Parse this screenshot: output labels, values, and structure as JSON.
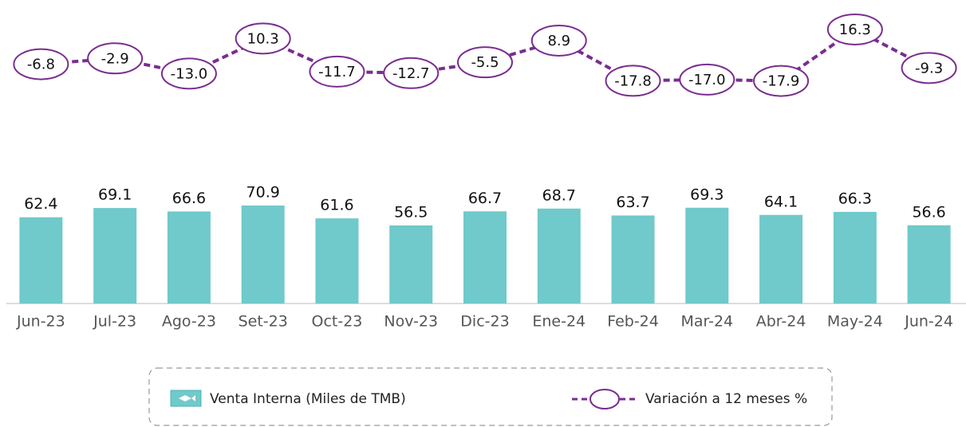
{
  "chart_data": {
    "type": "bar-line",
    "categories": [
      "Jun-23",
      "Jul-23",
      "Ago-23",
      "Set-23",
      "Oct-23",
      "Nov-23",
      "Dic-23",
      "Ene-24",
      "Feb-24",
      "Mar-24",
      "Abr-24",
      "May-24",
      "Jun-24"
    ],
    "series": [
      {
        "name": "Venta Interna (Miles de TMB)",
        "color": "#70c9ca",
        "values": [
          62.4,
          69.1,
          66.6,
          70.9,
          61.6,
          56.5,
          66.7,
          68.7,
          63.7,
          69.3,
          64.1,
          66.3,
          56.6
        ]
      },
      {
        "name": "Variación a 12 meses %",
        "color": "#7a2d8f",
        "axis": "y2",
        "values": [
          -6.8,
          -2.9,
          -13.0,
          10.3,
          -11.7,
          -12.7,
          -5.5,
          8.9,
          -17.8,
          -17.0,
          -17.9,
          16.3,
          -9.3
        ],
        "value_labels": [
          "-6.8",
          "-2.9",
          "-13.0",
          "10.3",
          "-11.7",
          "-12.7",
          "-5.5",
          "8.9",
          "-17.8",
          "-17.0",
          "-17.9",
          "16.3",
          "-9.3"
        ]
      }
    ],
    "ylim": [
      0,
      100
    ],
    "y2lim": [
      -25,
      20
    ]
  }
}
